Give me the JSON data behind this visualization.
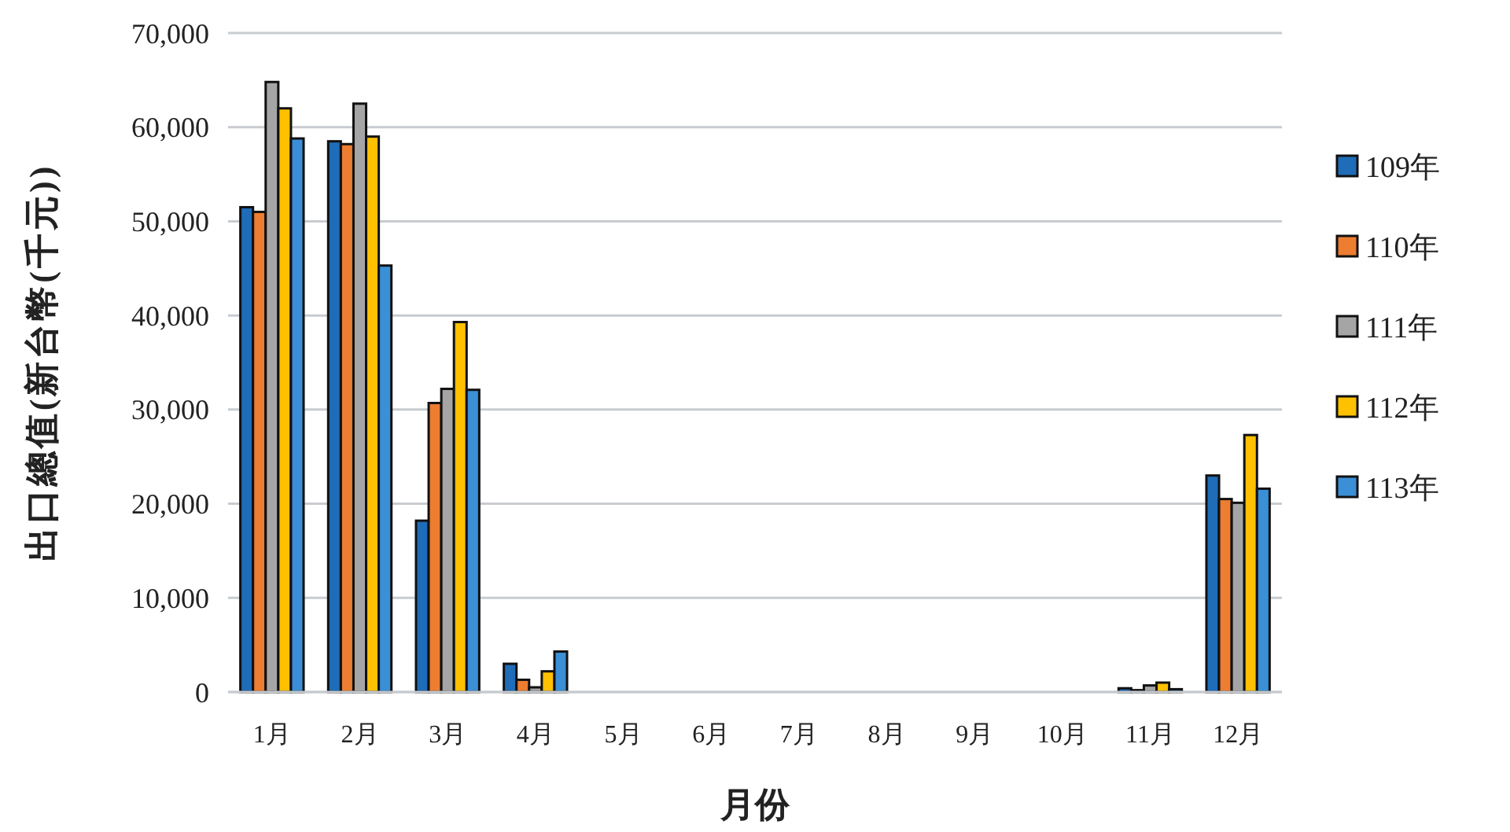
{
  "chart_data": {
    "type": "bar",
    "xlabel": "月份",
    "ylabel": "出口總值(新台幣(千元))",
    "categories": [
      "1月",
      "2月",
      "3月",
      "4月",
      "5月",
      "6月",
      "7月",
      "8月",
      "9月",
      "10月",
      "11月",
      "12月"
    ],
    "series": [
      {
        "name": "109年",
        "color": "#1f6cb8",
        "values": [
          51500,
          58500,
          18200,
          3000,
          0,
          0,
          0,
          0,
          0,
          0,
          400,
          23000
        ]
      },
      {
        "name": "110年",
        "color": "#ed7d31",
        "values": [
          51000,
          58200,
          30700,
          1300,
          0,
          0,
          0,
          0,
          0,
          0,
          200,
          20500
        ]
      },
      {
        "name": "111年",
        "color": "#a5a5a5",
        "values": [
          64800,
          62500,
          32200,
          500,
          0,
          0,
          0,
          0,
          0,
          0,
          700,
          20100
        ]
      },
      {
        "name": "112年",
        "color": "#ffc000",
        "values": [
          62000,
          59000,
          39300,
          2200,
          0,
          0,
          0,
          0,
          0,
          0,
          1000,
          27300
        ]
      },
      {
        "name": "113年",
        "color": "#3a8fd6",
        "values": [
          58800,
          45300,
          32100,
          4300,
          0,
          0,
          0,
          0,
          0,
          0,
          300,
          21600
        ]
      }
    ],
    "ylim": [
      0,
      70000
    ],
    "yticks": [
      {
        "value": 0,
        "label": "0"
      },
      {
        "value": 10000,
        "label": "10,000"
      },
      {
        "value": 20000,
        "label": "20,000"
      },
      {
        "value": 30000,
        "label": "30,000"
      },
      {
        "value": 40000,
        "label": "40,000"
      },
      {
        "value": 50000,
        "label": "50,000"
      },
      {
        "value": 60000,
        "label": "60,000"
      },
      {
        "value": 70000,
        "label": "70,000"
      }
    ],
    "grid": "y",
    "legend": "right"
  }
}
